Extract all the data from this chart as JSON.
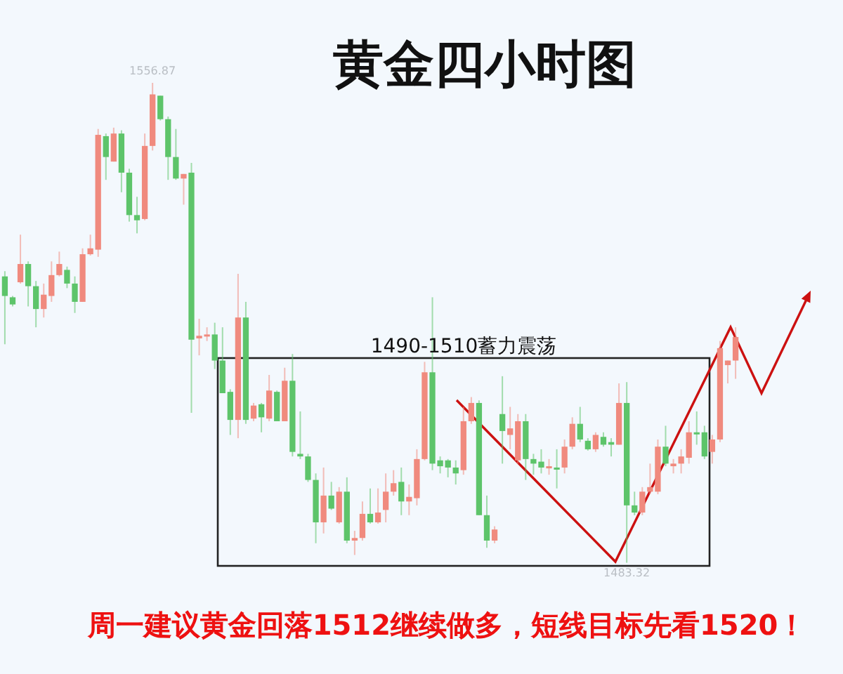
{
  "chart_data": {
    "type": "candlestick",
    "title": "黄金四小时图",
    "categories": [
      null,
      null,
      null,
      null,
      null,
      null,
      null,
      null,
      null,
      null,
      null,
      null,
      null,
      null,
      null,
      null,
      null,
      null,
      null,
      null,
      null,
      null,
      null,
      null,
      null,
      null,
      null,
      null,
      null,
      null,
      null,
      null,
      null,
      null,
      null,
      null,
      null,
      null,
      null,
      null,
      null,
      null,
      null,
      null,
      null,
      null,
      null,
      null,
      null,
      null,
      null,
      null,
      null,
      null,
      null,
      null,
      null,
      null,
      null,
      null,
      null,
      null,
      null,
      null,
      null,
      null,
      null,
      null,
      null,
      null,
      null,
      null,
      null,
      null,
      null,
      null,
      null,
      null,
      null,
      null,
      null,
      null,
      null,
      null,
      null,
      null,
      null,
      null,
      null,
      null,
      null,
      null,
      null,
      null,
      null
    ],
    "ohlc": [
      [
        1527.2,
        1528.0,
        1516.8,
        1524.2
      ],
      [
        1524.0,
        1524.2,
        1522.6,
        1522.9
      ],
      [
        1526.3,
        1533.6,
        1526.1,
        1529.1
      ],
      [
        1529.1,
        1529.5,
        1522.6,
        1525.7
      ],
      [
        1525.7,
        1526.5,
        1519.4,
        1522.2
      ],
      [
        1522.2,
        1526.1,
        1520.9,
        1524.4
      ],
      [
        1524.2,
        1529.5,
        1523.3,
        1527.4
      ],
      [
        1527.4,
        1531.0,
        1527.2,
        1529.1
      ],
      [
        1528.2,
        1528.7,
        1525.4,
        1526.1
      ],
      [
        1526.1,
        1527.2,
        1521.6,
        1523.3
      ],
      [
        1523.3,
        1531.5,
        1523.3,
        1530.6
      ],
      [
        1530.6,
        1533.6,
        1530.4,
        1531.5
      ],
      [
        1531.3,
        1549.8,
        1530.2,
        1548.9
      ],
      [
        1548.7,
        1549.1,
        1542.0,
        1545.5
      ],
      [
        1544.8,
        1550.0,
        1544.8,
        1549.1
      ],
      [
        1549.1,
        1549.6,
        1540.1,
        1543.1
      ],
      [
        1543.1,
        1543.7,
        1535.6,
        1536.6
      ],
      [
        1536.6,
        1539.4,
        1533.8,
        1535.8
      ],
      [
        1536.0,
        1549.1,
        1535.8,
        1547.2
      ],
      [
        1547.2,
        1556.87,
        1546.5,
        1555.1
      ],
      [
        1554.9,
        1554.9,
        1551.1,
        1551.3
      ],
      [
        1551.3,
        1551.7,
        1542.0,
        1545.5
      ],
      [
        1545.5,
        1549.8,
        1542.0,
        1542.2
      ],
      [
        1542.2,
        1542.9,
        1538.2,
        1542.9
      ],
      [
        1543.1,
        1544.6,
        1506.3,
        1517.5
      ],
      [
        1517.7,
        1520.7,
        1515.1,
        1518.1
      ],
      [
        1518.1,
        1519.4,
        1517.3,
        1518.3
      ],
      [
        1518.3,
        1520.1,
        1513.0,
        1514.3
      ],
      [
        1514.3,
        1519.4,
        1509.3,
        1509.3
      ],
      [
        1509.5,
        1509.9,
        1502.9,
        1505.2
      ],
      [
        1505.2,
        1527.6,
        1502.4,
        1520.9
      ],
      [
        1520.9,
        1523.3,
        1504.6,
        1505.2
      ],
      [
        1505.4,
        1507.8,
        1505.0,
        1507.4
      ],
      [
        1507.6,
        1507.8,
        1503.3,
        1505.6
      ],
      [
        1505.4,
        1512.1,
        1505.0,
        1509.7
      ],
      [
        1509.5,
        1509.7,
        1505.0,
        1505.0
      ],
      [
        1505.0,
        1513.2,
        1505.0,
        1511.2
      ],
      [
        1511.2,
        1515.3,
        1499.6,
        1500.3
      ],
      [
        1500.0,
        1506.5,
        1499.2,
        1499.6
      ],
      [
        1499.6,
        1500.0,
        1495.7,
        1496.0
      ],
      [
        1496.0,
        1497.0,
        1486.3,
        1489.5
      ],
      [
        1489.5,
        1497.9,
        1487.8,
        1493.6
      ],
      [
        1493.6,
        1495.7,
        1491.4,
        1491.6
      ],
      [
        1489.5,
        1494.9,
        1489.3,
        1494.2
      ],
      [
        1494.2,
        1496.4,
        1486.3,
        1486.7
      ],
      [
        1486.7,
        1488.2,
        1484.5,
        1487.1
      ],
      [
        1487.1,
        1492.7,
        1486.7,
        1490.8
      ],
      [
        1490.8,
        1494.7,
        1489.3,
        1489.5
      ],
      [
        1489.5,
        1494.7,
        1489.3,
        1491.0
      ],
      [
        1491.4,
        1497.0,
        1489.5,
        1494.2
      ],
      [
        1494.2,
        1497.5,
        1493.6,
        1495.5
      ],
      [
        1495.7,
        1497.9,
        1490.6,
        1492.7
      ],
      [
        1492.7,
        1495.3,
        1490.6,
        1493.4
      ],
      [
        1493.2,
        1500.7,
        1492.1,
        1499.2
      ],
      [
        1499.2,
        1514.1,
        1499.0,
        1512.5
      ],
      [
        1512.5,
        1524.0,
        1497.5,
        1498.5
      ],
      [
        1499.0,
        1499.6,
        1497.0,
        1498.1
      ],
      [
        1499.0,
        1499.2,
        1496.4,
        1497.9
      ],
      [
        1497.9,
        1499.0,
        1495.3,
        1497.0
      ],
      [
        1497.5,
        1507.2,
        1496.8,
        1505.0
      ],
      [
        1505.0,
        1508.7,
        1504.6,
        1507.8
      ],
      [
        1507.8,
        1508.2,
        1490.6,
        1490.6
      ],
      [
        1490.6,
        1493.6,
        1485.6,
        1486.7
      ],
      [
        1486.7,
        1488.9,
        1486.3,
        1488.4
      ],
      [
        1506.1,
        1511.9,
        1498.5,
        1503.5
      ],
      [
        1502.9,
        1507.2,
        1500.7,
        1503.9
      ],
      [
        1499.0,
        1506.1,
        1498.5,
        1505.0
      ],
      [
        1505.0,
        1506.1,
        1496.0,
        1499.2
      ],
      [
        1499.2,
        1500.0,
        1496.8,
        1498.5
      ],
      [
        1498.8,
        1500.7,
        1497.0,
        1497.9
      ],
      [
        1497.9,
        1499.2,
        1496.8,
        1498.1
      ],
      [
        1497.9,
        1500.7,
        1494.7,
        1497.7
      ],
      [
        1497.9,
        1502.2,
        1497.0,
        1501.1
      ],
      [
        1501.1,
        1505.6,
        1500.7,
        1504.6
      ],
      [
        1504.6,
        1507.2,
        1501.8,
        1502.2
      ],
      [
        1502.0,
        1502.4,
        1500.5,
        1500.7
      ],
      [
        1500.7,
        1503.3,
        1500.3,
        1502.9
      ],
      [
        1502.6,
        1503.3,
        1501.1,
        1501.4
      ],
      [
        1501.8,
        1502.4,
        1499.6,
        1501.4
      ],
      [
        1501.4,
        1510.8,
        1501.4,
        1507.8
      ],
      [
        1507.8,
        1511.0,
        1483.32,
        1492.1
      ],
      [
        1492.1,
        1494.2,
        1490.6,
        1491.0
      ],
      [
        1491.0,
        1494.9,
        1490.6,
        1494.2
      ],
      [
        1494.2,
        1498.5,
        1493.8,
        1494.9
      ],
      [
        1494.2,
        1502.2,
        1493.8,
        1501.1
      ],
      [
        1501.1,
        1504.3,
        1498.1,
        1498.5
      ],
      [
        1498.1,
        1499.2,
        1497.0,
        1498.5
      ],
      [
        1498.5,
        1500.7,
        1497.0,
        1499.6
      ],
      [
        1499.4,
        1505.0,
        1498.5,
        1503.3
      ],
      [
        1503.3,
        1506.5,
        1501.4,
        1503.1
      ],
      [
        1503.3,
        1504.3,
        1499.2,
        1499.6
      ],
      [
        1500.3,
        1502.9,
        1498.5,
        1502.2
      ],
      [
        1502.2,
        1517.3,
        1501.8,
        1516.2
      ],
      [
        1513.6,
        1514.3,
        1510.8,
        1514.3
      ],
      [
        1514.3,
        1519.4,
        1511.5,
        1517.9
      ]
    ],
    "annotations": [
      {
        "text": "1556.87",
        "y": 1556.87
      },
      {
        "text": "1483.32",
        "y": 1483.32
      },
      "1490-1510蓄力震荡",
      "周一建议黄金回落1512继续做多，短线目标先看1520！"
    ]
  }
}
